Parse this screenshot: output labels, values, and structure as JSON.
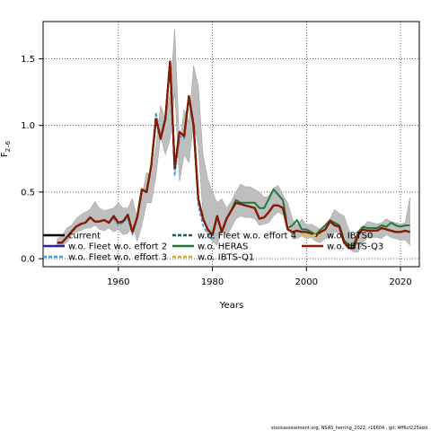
{
  "chart_data": {
    "type": "line",
    "xlabel": "Years",
    "ylabel_main": "F",
    "ylabel_sub": "2–6",
    "xlim": [
      1944,
      2024
    ],
    "ylim": [
      -0.06,
      1.78
    ],
    "x_ticks": [
      1960,
      1980,
      2000,
      2020
    ],
    "y_ticks": [
      0.0,
      0.5,
      1.0,
      1.5
    ],
    "x_tick_labels": [
      "1960",
      "1980",
      "2000",
      "2020"
    ],
    "y_tick_labels": [
      "0.0",
      "0.5",
      "1.0",
      "1.5"
    ],
    "grid": "dotted",
    "legend_placement": "bottom",
    "footer": "stockassessment.org, NSAS_herring_2022, r16604 , git: 4ff6cf225add",
    "x": [
      1947,
      1948,
      1949,
      1950,
      1951,
      1952,
      1953,
      1954,
      1955,
      1956,
      1957,
      1958,
      1959,
      1960,
      1961,
      1962,
      1963,
      1964,
      1965,
      1966,
      1967,
      1968,
      1969,
      1970,
      1971,
      1972,
      1973,
      1974,
      1975,
      1976,
      1977,
      1978,
      1979,
      1980,
      1981,
      1982,
      1983,
      1984,
      1985,
      1986,
      1987,
      1988,
      1989,
      1990,
      1991,
      1992,
      1993,
      1994,
      1995,
      1996,
      1997,
      1998,
      1999,
      2000,
      2001,
      2002,
      2003,
      2004,
      2005,
      2006,
      2007,
      2008,
      2009,
      2010,
      2011,
      2012,
      2013,
      2014,
      2015,
      2016,
      2017,
      2018,
      2019,
      2020,
      2021,
      2022
    ],
    "band": {
      "upper": [
        0.15,
        0.17,
        0.23,
        0.25,
        0.3,
        0.33,
        0.35,
        0.37,
        0.43,
        0.38,
        0.36,
        0.37,
        0.38,
        0.42,
        0.38,
        0.38,
        0.45,
        0.3,
        0.46,
        0.65,
        0.62,
        0.85,
        1.15,
        1.05,
        1.25,
        1.72,
        0.85,
        1.12,
        1.02,
        1.45,
        1.3,
        0.78,
        0.6,
        0.5,
        0.42,
        0.45,
        0.38,
        0.43,
        0.5,
        0.56,
        0.54,
        0.54,
        0.52,
        0.5,
        0.46,
        0.47,
        0.53,
        0.55,
        0.48,
        0.42,
        0.3,
        0.25,
        0.3,
        0.25,
        0.26,
        0.24,
        0.22,
        0.26,
        0.3,
        0.37,
        0.34,
        0.32,
        0.22,
        0.15,
        0.15,
        0.24,
        0.28,
        0.27,
        0.26,
        0.27,
        0.3,
        0.28,
        0.27,
        0.26,
        0.27,
        0.46
      ],
      "lower": [
        0.1,
        0.1,
        0.12,
        0.17,
        0.2,
        0.21,
        0.23,
        0.23,
        0.25,
        0.22,
        0.21,
        0.23,
        0.2,
        0.22,
        0.18,
        0.19,
        0.25,
        0.13,
        0.25,
        0.42,
        0.42,
        0.62,
        0.92,
        0.78,
        0.9,
        1.25,
        0.58,
        0.78,
        0.72,
        1.02,
        0.85,
        0.32,
        0.18,
        0.13,
        0.1,
        0.22,
        0.17,
        0.23,
        0.3,
        0.32,
        0.31,
        0.31,
        0.3,
        0.25,
        0.26,
        0.27,
        0.32,
        0.35,
        0.33,
        0.3,
        0.15,
        0.15,
        0.17,
        0.15,
        0.16,
        0.13,
        0.12,
        0.15,
        0.16,
        0.2,
        0.19,
        0.18,
        0.08,
        0.05,
        0.05,
        0.12,
        0.16,
        0.16,
        0.16,
        0.15,
        0.18,
        0.16,
        0.15,
        0.14,
        0.14,
        0.1
      ]
    },
    "series": [
      {
        "name": "current",
        "color": "#000000",
        "dash": "solid",
        "values": [
          0.12,
          0.12,
          0.16,
          0.2,
          0.24,
          0.26,
          0.27,
          0.31,
          0.28,
          0.28,
          0.29,
          0.27,
          0.32,
          0.27,
          0.28,
          0.33,
          0.2,
          0.31,
          0.52,
          0.5,
          0.7,
          1.05,
          0.9,
          1.05,
          1.48,
          0.68,
          0.95,
          0.92,
          1.22,
          1.0,
          0.45,
          0.3,
          0.22,
          0.18,
          0.32,
          0.2,
          0.3,
          0.36,
          0.42,
          0.41,
          0.4,
          0.39,
          0.38,
          0.3,
          0.31,
          0.35,
          0.4,
          0.4,
          0.38,
          0.22,
          0.2,
          0.21,
          0.2,
          0.2,
          0.19,
          0.17,
          0.2,
          0.22,
          0.28,
          0.25,
          0.24,
          0.12,
          0.08,
          0.08,
          0.18,
          0.22,
          0.21,
          0.21,
          0.21,
          0.23,
          0.22,
          0.21,
          0.2,
          0.2,
          0.21,
          0.2
        ]
      },
      {
        "name": "w.o. Fleet w.o. effort 2",
        "color": "#2222aa",
        "dash": "solid",
        "values": [
          0.12,
          0.12,
          0.16,
          0.2,
          0.24,
          0.26,
          0.27,
          0.31,
          0.28,
          0.28,
          0.29,
          0.27,
          0.31,
          0.27,
          0.28,
          0.33,
          0.2,
          0.31,
          0.52,
          0.5,
          0.7,
          1.05,
          0.9,
          1.05,
          1.47,
          0.67,
          0.95,
          0.92,
          1.22,
          1.0,
          0.44,
          0.3,
          0.22,
          0.18,
          0.32,
          0.2,
          0.3,
          0.36,
          0.42,
          0.41,
          0.4,
          0.39,
          0.38,
          0.3,
          0.31,
          0.35,
          0.4,
          0.4,
          0.38,
          0.22,
          0.2,
          0.21,
          0.2,
          0.2,
          0.19,
          0.17,
          0.2,
          0.22,
          0.28,
          0.25,
          0.24,
          0.12,
          0.08,
          0.08,
          0.18,
          0.22,
          0.21,
          0.21,
          0.21,
          0.23,
          0.22,
          0.21,
          0.2,
          0.2,
          0.21,
          0.2
        ]
      },
      {
        "name": "w.o. Fleet w.o. effort 3",
        "color": "#3aa0d8",
        "dash": "dashed",
        "values": [
          0.12,
          0.12,
          0.16,
          0.2,
          0.24,
          0.26,
          0.27,
          0.31,
          0.28,
          0.28,
          0.29,
          0.27,
          0.3,
          0.25,
          0.27,
          0.31,
          0.18,
          0.3,
          0.52,
          0.5,
          0.7,
          1.1,
          0.92,
          1.06,
          1.44,
          0.62,
          0.92,
          0.9,
          1.2,
          0.98,
          0.4,
          0.25,
          0.18,
          0.15,
          0.3,
          0.2,
          0.3,
          0.36,
          0.42,
          0.41,
          0.4,
          0.39,
          0.38,
          0.3,
          0.31,
          0.35,
          0.4,
          0.4,
          0.38,
          0.22,
          0.2,
          0.21,
          0.2,
          0.2,
          0.19,
          0.17,
          0.2,
          0.22,
          0.28,
          0.25,
          0.24,
          0.12,
          0.08,
          0.08,
          0.18,
          0.22,
          0.21,
          0.21,
          0.21,
          0.23,
          0.22,
          0.21,
          0.2,
          0.2,
          0.21,
          0.2
        ]
      },
      {
        "name": "w.o. Fleet w.o. effort 4",
        "color": "#1a5c5c",
        "dash": "dashed",
        "values": [
          0.12,
          0.12,
          0.16,
          0.2,
          0.24,
          0.26,
          0.27,
          0.31,
          0.28,
          0.28,
          0.29,
          0.27,
          0.32,
          0.27,
          0.28,
          0.33,
          0.2,
          0.31,
          0.52,
          0.5,
          0.7,
          1.05,
          0.9,
          1.05,
          1.48,
          0.68,
          0.95,
          0.92,
          1.22,
          1.0,
          0.45,
          0.3,
          0.22,
          0.18,
          0.32,
          0.2,
          0.3,
          0.36,
          0.42,
          0.41,
          0.4,
          0.39,
          0.38,
          0.3,
          0.31,
          0.35,
          0.4,
          0.4,
          0.38,
          0.22,
          0.2,
          0.21,
          0.2,
          0.2,
          0.19,
          0.17,
          0.2,
          0.22,
          0.28,
          0.25,
          0.24,
          0.12,
          0.08,
          0.08,
          0.18,
          0.22,
          0.21,
          0.21,
          0.21,
          0.23,
          0.22,
          0.21,
          0.2,
          0.2,
          0.21,
          0.2
        ]
      },
      {
        "name": "w.o. HERAS",
        "color": "#1f7a3a",
        "dash": "solid",
        "values": [
          0.12,
          0.12,
          0.16,
          0.2,
          0.24,
          0.26,
          0.27,
          0.31,
          0.28,
          0.28,
          0.29,
          0.27,
          0.32,
          0.27,
          0.28,
          0.33,
          0.2,
          0.31,
          0.52,
          0.5,
          0.7,
          1.05,
          0.9,
          1.05,
          1.48,
          0.68,
          0.95,
          0.92,
          1.22,
          1.0,
          0.45,
          0.3,
          0.22,
          0.18,
          0.32,
          0.2,
          0.3,
          0.36,
          0.44,
          0.42,
          0.42,
          0.42,
          0.42,
          0.38,
          0.38,
          0.45,
          0.52,
          0.48,
          0.44,
          0.23,
          0.25,
          0.29,
          0.22,
          0.22,
          0.2,
          0.18,
          0.22,
          0.25,
          0.29,
          0.27,
          0.25,
          0.14,
          0.1,
          0.1,
          0.2,
          0.24,
          0.23,
          0.23,
          0.23,
          0.25,
          0.24,
          0.27,
          0.25,
          0.24,
          0.25,
          0.25
        ]
      },
      {
        "name": "w.o. IBTS-Q1",
        "color": "#d4b020",
        "dash": "dashed",
        "values": [
          0.12,
          0.12,
          0.16,
          0.2,
          0.24,
          0.26,
          0.27,
          0.31,
          0.28,
          0.28,
          0.29,
          0.27,
          0.32,
          0.27,
          0.28,
          0.33,
          0.2,
          0.31,
          0.52,
          0.5,
          0.7,
          1.05,
          0.9,
          1.05,
          1.48,
          0.68,
          0.95,
          0.92,
          1.22,
          1.0,
          0.45,
          0.3,
          0.22,
          0.18,
          0.32,
          0.2,
          0.3,
          0.36,
          0.42,
          0.41,
          0.4,
          0.39,
          0.38,
          0.3,
          0.31,
          0.35,
          0.4,
          0.4,
          0.38,
          0.22,
          0.2,
          0.21,
          0.2,
          0.2,
          0.19,
          0.17,
          0.2,
          0.22,
          0.28,
          0.25,
          0.24,
          0.12,
          0.08,
          0.08,
          0.18,
          0.22,
          0.21,
          0.21,
          0.21,
          0.23,
          0.22,
          0.21,
          0.2,
          0.2,
          0.21,
          0.2
        ]
      },
      {
        "name": "w.o. IBTS0",
        "color": "#d8c040",
        "dash": "dashed",
        "values": [
          0.12,
          0.12,
          0.16,
          0.2,
          0.24,
          0.26,
          0.27,
          0.31,
          0.28,
          0.28,
          0.29,
          0.27,
          0.32,
          0.27,
          0.28,
          0.33,
          0.2,
          0.31,
          0.52,
          0.5,
          0.7,
          1.05,
          0.9,
          1.05,
          1.48,
          0.68,
          0.95,
          0.92,
          1.22,
          1.0,
          0.45,
          0.3,
          0.22,
          0.18,
          0.32,
          0.2,
          0.3,
          0.36,
          0.42,
          0.41,
          0.4,
          0.39,
          0.38,
          0.3,
          0.31,
          0.35,
          0.4,
          0.4,
          0.38,
          0.22,
          0.2,
          0.21,
          0.2,
          0.2,
          0.19,
          0.17,
          0.2,
          0.22,
          0.28,
          0.25,
          0.24,
          0.12,
          0.08,
          0.08,
          0.18,
          0.22,
          0.21,
          0.21,
          0.21,
          0.23,
          0.22,
          0.21,
          0.2,
          0.2,
          0.21,
          0.2
        ]
      },
      {
        "name": "w.o. IBTS-Q3",
        "color": "#8b1a00",
        "dash": "solid",
        "values": [
          0.12,
          0.12,
          0.16,
          0.2,
          0.24,
          0.26,
          0.27,
          0.31,
          0.28,
          0.28,
          0.29,
          0.27,
          0.32,
          0.27,
          0.28,
          0.33,
          0.2,
          0.31,
          0.52,
          0.5,
          0.7,
          1.05,
          0.9,
          1.05,
          1.48,
          0.68,
          0.95,
          0.92,
          1.22,
          1.0,
          0.45,
          0.3,
          0.22,
          0.18,
          0.32,
          0.2,
          0.3,
          0.36,
          0.42,
          0.41,
          0.4,
          0.39,
          0.38,
          0.3,
          0.31,
          0.35,
          0.4,
          0.4,
          0.38,
          0.22,
          0.2,
          0.21,
          0.2,
          0.2,
          0.19,
          0.17,
          0.2,
          0.22,
          0.28,
          0.25,
          0.24,
          0.12,
          0.08,
          0.08,
          0.18,
          0.22,
          0.21,
          0.21,
          0.21,
          0.23,
          0.22,
          0.21,
          0.2,
          0.2,
          0.21,
          0.2
        ]
      }
    ]
  }
}
